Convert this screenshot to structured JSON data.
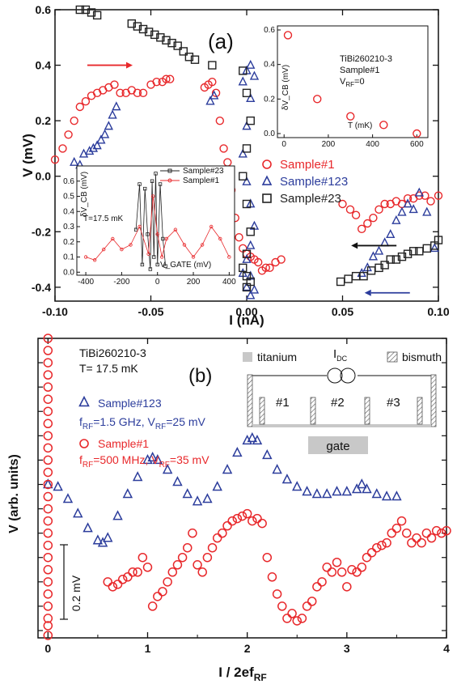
{
  "chart_data": [
    {
      "id": "a",
      "type": "scatter",
      "panel_label": "(a)",
      "xlabel": "I (nA)",
      "ylabel": "V (mV)",
      "xlim": [
        -0.1,
        0.1
      ],
      "ylim": [
        -0.45,
        0.6
      ],
      "xticks": [
        "-0.10",
        "-0.05",
        "0.00",
        "0.05",
        "0.10"
      ],
      "yticks": [
        "0.6",
        "0.4",
        "0.2",
        "0.0",
        "-0.2",
        "-0.4"
      ],
      "legend": [
        "Sample#1",
        "Sample#123",
        "Sample#23"
      ],
      "legend_position": "center-right",
      "colors": {
        "sample1": "#e8282b",
        "sample123": "#2c3d9c",
        "sample23": "#222222"
      },
      "series": [
        {
          "name": "Sample#1",
          "marker": "circle",
          "x": [
            -0.1,
            -0.096,
            -0.093,
            -0.09,
            -0.087,
            -0.084,
            -0.081,
            -0.078,
            -0.075,
            -0.072,
            -0.069,
            -0.066,
            -0.063,
            -0.06,
            -0.057,
            -0.054,
            -0.05,
            -0.047,
            -0.044,
            -0.042,
            -0.04,
            -0.022,
            -0.02,
            -0.018,
            -0.016,
            -0.014,
            -0.012,
            -0.01,
            -0.008,
            -0.006,
            -0.004,
            -0.002,
            0.0,
            0.002,
            0.004,
            0.006,
            0.008,
            0.01,
            0.012,
            0.015,
            0.018,
            0.05,
            0.054,
            0.057,
            0.06,
            0.063,
            0.066,
            0.069,
            0.072,
            0.075,
            0.078,
            0.081,
            0.084,
            0.087,
            0.09,
            0.093,
            0.096,
            0.1
          ],
          "y": [
            0.06,
            0.1,
            0.15,
            0.2,
            0.25,
            0.27,
            0.29,
            0.3,
            0.31,
            0.32,
            0.33,
            0.3,
            0.3,
            0.31,
            0.3,
            0.3,
            0.33,
            0.34,
            0.34,
            0.35,
            0.35,
            0.32,
            0.33,
            0.34,
            0.3,
            0.2,
            0.1,
            0.05,
            -0.05,
            -0.15,
            -0.22,
            -0.26,
            -0.28,
            -0.29,
            -0.3,
            -0.31,
            -0.34,
            -0.33,
            -0.33,
            -0.31,
            -0.3,
            -0.1,
            -0.12,
            -0.14,
            -0.19,
            -0.17,
            -0.15,
            -0.12,
            -0.1,
            -0.1,
            -0.09,
            -0.1,
            -0.08,
            -0.08,
            -0.07,
            -0.07,
            -0.09,
            -0.07
          ]
        },
        {
          "name": "Sample#123",
          "marker": "triangle",
          "x": [
            -0.09,
            -0.087,
            -0.085,
            -0.082,
            -0.08,
            -0.078,
            -0.076,
            -0.074,
            -0.072,
            -0.07,
            -0.068,
            -0.019,
            -0.017,
            -0.002,
            0.0,
            0.002,
            0.004,
            0.002,
            0.0,
            -0.002,
            0.0,
            0.002,
            0.004,
            0.002,
            0.0,
            -0.002,
            0.0,
            0.002,
            0.004,
            0.002,
            0.06,
            0.063,
            0.066,
            0.069,
            0.072,
            0.075,
            0.078,
            0.081,
            0.084,
            0.087,
            0.09,
            0.094,
            0.098
          ],
          "y": [
            0.05,
            0.04,
            0.08,
            0.09,
            0.1,
            0.11,
            0.13,
            0.15,
            0.18,
            0.22,
            0.25,
            0.27,
            0.29,
            0.34,
            0.38,
            0.4,
            0.36,
            0.28,
            0.18,
            0.08,
            -0.02,
            -0.1,
            -0.18,
            -0.25,
            -0.3,
            -0.35,
            -0.4,
            -0.43,
            -0.41,
            -0.36,
            -0.35,
            -0.33,
            -0.29,
            -0.27,
            -0.24,
            -0.21,
            -0.16,
            -0.13,
            -0.1,
            -0.12,
            -0.06,
            -0.13,
            -0.26
          ]
        },
        {
          "name": "Sample#23",
          "marker": "square",
          "x": [
            -0.087,
            -0.084,
            -0.081,
            -0.078,
            -0.06,
            -0.057,
            -0.054,
            -0.051,
            -0.048,
            -0.045,
            -0.042,
            -0.039,
            -0.036,
            -0.033,
            -0.03,
            -0.027,
            -0.018,
            -0.002,
            0.0,
            0.002,
            0.0,
            -0.002,
            0.0,
            0.002,
            0.0,
            -0.002,
            0.0,
            0.002,
            0.0,
            0.049,
            0.053,
            0.057,
            0.061,
            0.065,
            0.069,
            0.072,
            0.075,
            0.078,
            0.081,
            0.084,
            0.087,
            0.09,
            0.094,
            0.098,
            0.1
          ],
          "y": [
            0.6,
            0.6,
            0.59,
            0.58,
            0.55,
            0.54,
            0.53,
            0.52,
            0.51,
            0.5,
            0.49,
            0.48,
            0.47,
            0.45,
            0.43,
            0.42,
            0.4,
            0.38,
            0.3,
            0.2,
            0.1,
            0.0,
            -0.1,
            -0.2,
            -0.28,
            -0.33,
            -0.36,
            -0.38,
            -0.4,
            -0.38,
            -0.37,
            -0.36,
            -0.36,
            -0.34,
            -0.33,
            -0.32,
            -0.3,
            -0.3,
            -0.29,
            -0.28,
            -0.27,
            -0.27,
            -0.26,
            -0.25,
            -0.23
          ]
        }
      ],
      "arrows": [
        {
          "at_x": -0.073,
          "at_y": 0.4,
          "direction": "right",
          "color": "#e8282b"
        },
        {
          "at_x": 0.068,
          "at_y": -0.25,
          "direction": "left",
          "color": "#111111"
        },
        {
          "at_x": 0.075,
          "at_y": -0.42,
          "direction": "left",
          "color": "#2c3d9c"
        }
      ]
    },
    {
      "id": "a-inset-top",
      "type": "scatter",
      "ylabel": "δV_CB (mV)",
      "xlabel": "T (mK)",
      "xlim": [
        -30,
        650
      ],
      "ylim": [
        0,
        0.6
      ],
      "xticks": [
        "0",
        "200",
        "400",
        "600"
      ],
      "yticks": [
        "0.0",
        "0.2",
        "0.4",
        "0.6"
      ],
      "annotations": [
        "TiBi260210-3",
        "Sample#1",
        "V",
        "RF",
        "=0"
      ],
      "series": [
        {
          "name": "Sample#1",
          "marker": "circle",
          "x": [
            17.5,
            150,
            300,
            450,
            600
          ],
          "y": [
            0.57,
            0.2,
            0.1,
            0.05,
            0.0
          ]
        }
      ]
    },
    {
      "id": "a-inset-bottom",
      "type": "line",
      "ylabel": "δV_CB (mV)",
      "xlabel": "V_GATE (mV)",
      "xlim": [
        -450,
        430
      ],
      "ylim": [
        -0.02,
        0.7
      ],
      "xticks": [
        "-400",
        "-200",
        "0",
        "200",
        "400"
      ],
      "yticks": [
        "0.0",
        "0.1",
        "0.2",
        "0.3",
        "0.4",
        "0.5",
        "0.6"
      ],
      "annotations": [
        "T=17.5 mK"
      ],
      "legend": [
        "Sample#23",
        "Sample#1"
      ],
      "series": [
        {
          "name": "Sample#23",
          "marker": "square",
          "x": [
            -120,
            -100,
            -85,
            -70,
            -55,
            -40,
            -30,
            -20,
            -10,
            0,
            15,
            30,
            45
          ],
          "y": [
            0.28,
            0.58,
            0.05,
            0.55,
            0.25,
            0.02,
            0.6,
            0.1,
            0.65,
            0.05,
            0.58,
            0.22,
            0.04
          ]
        },
        {
          "name": "Sample#1",
          "marker": "circle",
          "x": [
            -400,
            -350,
            -300,
            -250,
            -200,
            -150,
            -100,
            -50,
            -25,
            0,
            25,
            50,
            100,
            150,
            200,
            250,
            300,
            350,
            400
          ],
          "y": [
            0.1,
            0.08,
            0.15,
            0.22,
            0.15,
            0.18,
            0.3,
            0.12,
            0.5,
            0.25,
            0.1,
            0.22,
            0.28,
            0.18,
            0.1,
            0.18,
            0.3,
            0.22,
            0.1
          ]
        }
      ]
    },
    {
      "id": "b",
      "type": "scatter",
      "panel_label": "(b)",
      "xlabel_main": "I / 2ef",
      "xlabel_sub": "RF",
      "ylabel": "V (arb. units)",
      "xlim": [
        -0.1,
        4.0
      ],
      "ylim": [
        -0.63,
        0.6
      ],
      "xticks": [
        "0",
        "1",
        "2",
        "3",
        "4"
      ],
      "scale_bar": "0.2 mV",
      "colors": {
        "sample1": "#e8282b",
        "sample123": "#2c3d9c"
      },
      "annotations": {
        "device": "TiBi260210-3",
        "temperature": "T= 17.5 mK",
        "legend_123_name": "Sample#123",
        "legend_123_params": [
          "f",
          "RF",
          "=1.5 GHz, V",
          "RF",
          "=25 mV"
        ],
        "legend_1_name": "Sample#1",
        "legend_1_params": [
          "f",
          "RF",
          "=500 MHz, V",
          "RF",
          "=35 mV"
        ]
      },
      "schematic": {
        "titanium": "titanium",
        "current": "I",
        "current_sub": "DC",
        "bismuth": "bismuth",
        "junctions": [
          "#1",
          "#2",
          "#3"
        ],
        "gate": "gate"
      },
      "series": [
        {
          "name": "Sample#123",
          "marker": "triangle",
          "x": [
            0.0,
            0.1,
            0.2,
            0.3,
            0.4,
            0.5,
            0.55,
            0.6,
            0.7,
            0.8,
            0.9,
            1.0,
            1.05,
            1.1,
            1.2,
            1.3,
            1.4,
            1.5,
            1.6,
            1.7,
            1.8,
            1.9,
            2.0,
            2.05,
            2.1,
            2.2,
            2.3,
            2.4,
            2.5,
            2.6,
            2.7,
            2.8,
            2.9,
            3.0,
            3.1,
            3.15,
            3.2,
            3.3,
            3.4,
            3.5
          ],
          "y": [
            0.0,
            -0.01,
            -0.06,
            -0.12,
            -0.18,
            -0.23,
            -0.24,
            -0.22,
            -0.13,
            -0.04,
            0.03,
            0.1,
            0.11,
            0.1,
            0.06,
            0.01,
            -0.04,
            -0.07,
            -0.06,
            -0.01,
            0.06,
            0.13,
            0.18,
            0.19,
            0.18,
            0.12,
            0.06,
            0.02,
            -0.01,
            -0.03,
            -0.04,
            -0.04,
            -0.03,
            -0.03,
            -0.02,
            0.0,
            -0.02,
            -0.04,
            -0.05,
            -0.05
          ]
        },
        {
          "name": "Sample#1",
          "marker": "circle",
          "x": [
            0.0,
            0.0,
            0.0,
            0.0,
            0.0,
            0.0,
            0.0,
            0.0,
            0.0,
            0.0,
            0.0,
            0.0,
            0.0,
            0.0,
            0.0,
            0.0,
            0.0,
            0.0,
            0.0,
            0.0,
            0.0,
            0.0,
            0.0,
            0.0,
            0.0,
            0.0,
            0.6,
            0.65,
            0.7,
            0.75,
            0.8,
            0.85,
            0.9,
            0.95,
            1.0,
            1.05,
            1.1,
            1.15,
            1.2,
            1.25,
            1.3,
            1.35,
            1.4,
            1.45,
            1.5,
            1.55,
            1.6,
            1.65,
            1.7,
            1.75,
            1.8,
            1.85,
            1.9,
            1.95,
            2.0,
            2.05,
            2.1,
            2.15,
            2.2,
            2.25,
            2.3,
            2.35,
            2.4,
            2.45,
            2.5,
            2.55,
            2.6,
            2.65,
            2.7,
            2.75,
            2.8,
            2.85,
            2.9,
            2.95,
            3.0,
            3.05,
            3.1,
            3.15,
            3.2,
            3.25,
            3.3,
            3.35,
            3.4,
            3.45,
            3.5,
            3.55,
            3.6,
            3.65,
            3.7,
            3.75,
            3.8,
            3.85,
            3.9,
            3.95,
            4.0
          ],
          "y": [
            0.6,
            0.55,
            0.5,
            0.45,
            0.4,
            0.35,
            0.3,
            0.25,
            0.2,
            0.15,
            0.1,
            0.05,
            0.0,
            -0.05,
            -0.1,
            -0.15,
            -0.2,
            -0.25,
            -0.3,
            -0.35,
            -0.4,
            -0.45,
            -0.5,
            -0.55,
            -0.58,
            -0.62,
            -0.4,
            -0.42,
            -0.41,
            -0.39,
            -0.38,
            -0.36,
            -0.36,
            -0.3,
            -0.34,
            -0.5,
            -0.46,
            -0.44,
            -0.4,
            -0.36,
            -0.33,
            -0.3,
            -0.26,
            -0.2,
            -0.33,
            -0.36,
            -0.3,
            -0.26,
            -0.22,
            -0.2,
            -0.17,
            -0.15,
            -0.14,
            -0.13,
            -0.12,
            -0.15,
            -0.14,
            -0.16,
            -0.3,
            -0.38,
            -0.45,
            -0.5,
            -0.55,
            -0.53,
            -0.56,
            -0.55,
            -0.5,
            -0.48,
            -0.42,
            -0.4,
            -0.34,
            -0.36,
            -0.32,
            -0.36,
            -0.42,
            -0.35,
            -0.36,
            -0.34,
            -0.3,
            -0.28,
            -0.26,
            -0.25,
            -0.24,
            -0.2,
            -0.18,
            -0.15,
            -0.2,
            -0.24,
            -0.22,
            -0.24,
            -0.2,
            -0.22,
            -0.19,
            -0.2,
            -0.19
          ]
        }
      ]
    }
  ]
}
